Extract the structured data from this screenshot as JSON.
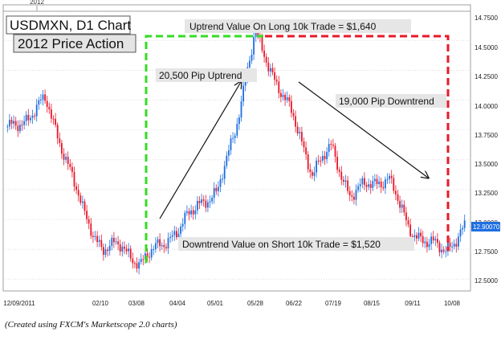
{
  "chart_data": {
    "type": "candlestick",
    "title": "USDMXN, D1 Chart",
    "subtitle": "2012 Price Action",
    "top_axis_label": "2012",
    "x_tick_labels": [
      "12/09/2011",
      "02/10",
      "03/08",
      "04/04",
      "05/01",
      "05/28",
      "06/22",
      "07/19",
      "08/15",
      "09/11",
      "10/08"
    ],
    "y_tick_labels": [
      "14.7500",
      "14.5000",
      "14.2500",
      "14.0000",
      "13.7500",
      "13.5000",
      "13.2500",
      "13.0000",
      "12.7500",
      "12.5000"
    ],
    "ylim": [
      12.4,
      14.8
    ],
    "current_price": "12.90070",
    "colors": {
      "up": "#1e6fe0",
      "down": "#e8182a",
      "uptrend_box": "#33dd22",
      "downtrend_box": "#e8182a",
      "price_tag": "#1e6fe0"
    },
    "annotations": {
      "uptrend_value": "Uptrend Value On Long 10k Trade = $1,640",
      "uptrend_pips": "20,500 Pip Uptrend",
      "downtrend_pips": "19,000 Pip Downtrend",
      "downtrend_value": "Downtrend Value on Short 10k Trade = $1,520"
    },
    "series": [
      {
        "x": [
          "12/09/2011",
          "late Dec 2011",
          "early Jan",
          "mid Jan",
          "late Jan",
          "02/10",
          "late Feb",
          "03/08",
          "mid Mar",
          "04/04",
          "mid Apr",
          "05/01",
          "mid May",
          "05/28",
          "early Jun",
          "06/22",
          "early Jul",
          "07/19",
          "early Aug",
          "08/15",
          "late Aug",
          "09/11",
          "late Sep",
          "10/08",
          "mid Oct"
        ],
        "values": [
          13.75,
          13.85,
          14.0,
          13.55,
          13.05,
          12.75,
          12.78,
          12.62,
          12.8,
          12.9,
          13.15,
          13.2,
          13.8,
          14.55,
          14.2,
          13.85,
          13.4,
          13.6,
          13.2,
          13.3,
          13.35,
          12.95,
          12.8,
          12.75,
          12.92
        ]
      }
    ]
  },
  "footer": {
    "caption": "(Created using FXCM's Marketscope 2.0 charts)"
  }
}
